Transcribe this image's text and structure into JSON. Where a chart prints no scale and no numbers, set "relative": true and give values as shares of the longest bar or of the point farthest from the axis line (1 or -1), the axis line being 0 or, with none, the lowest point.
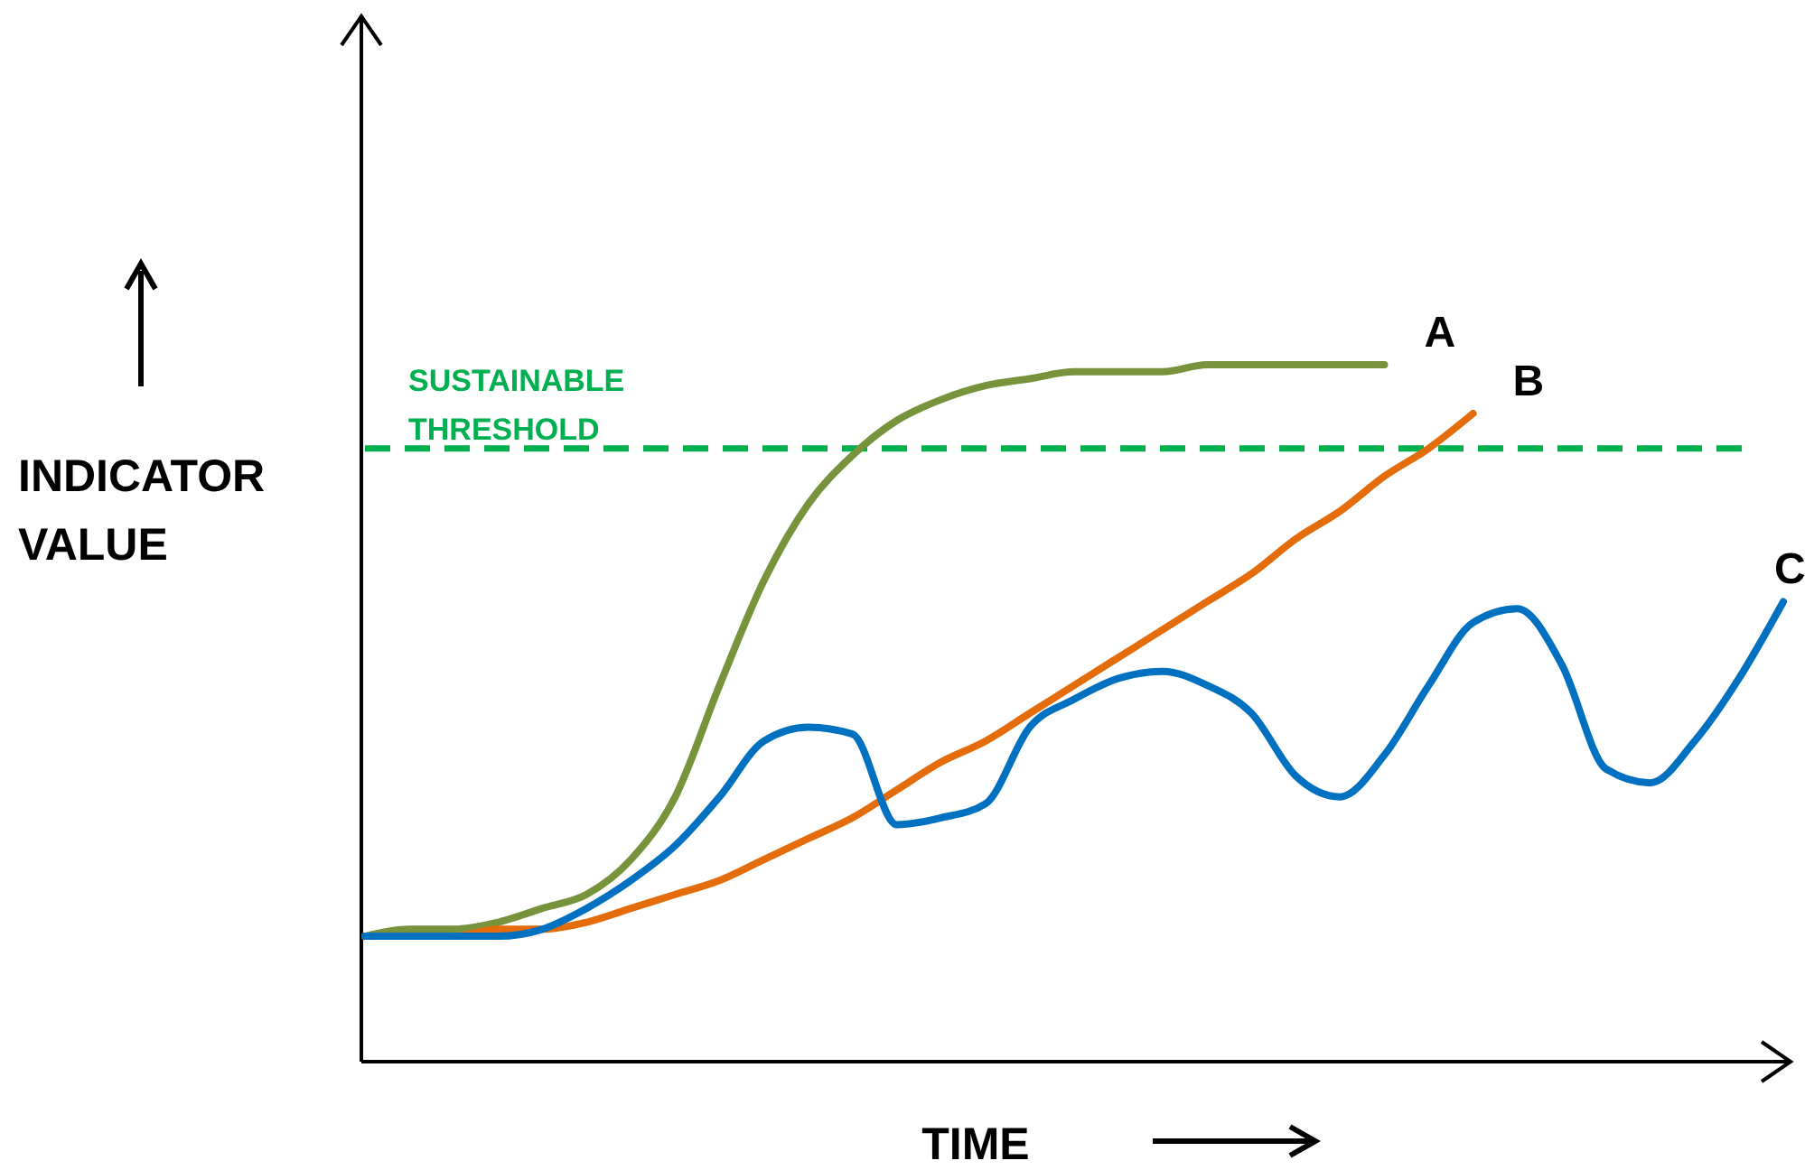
{
  "chart_data": {
    "type": "line",
    "relative": true,
    "xlabel": "TIME",
    "ylabel": "INDICATOR VALUE",
    "categories": [
      null,
      null,
      null,
      null,
      null,
      null,
      null,
      null,
      null,
      null,
      null,
      null,
      null,
      null,
      null,
      null,
      null,
      null,
      null,
      null,
      null,
      null,
      null,
      null,
      null,
      null,
      null,
      null,
      null,
      null,
      null,
      null,
      null
    ],
    "series": [
      {
        "name": "A",
        "color": "#77933c",
        "values": [
          0.18,
          0.19,
          0.19,
          0.2,
          0.22,
          0.24,
          0.29,
          0.38,
          0.54,
          0.69,
          0.8,
          0.87,
          0.92,
          0.95,
          0.97,
          0.98,
          0.99,
          0.99,
          0.99,
          1,
          1,
          1,
          1,
          1,
          null,
          null,
          null,
          null,
          null,
          null,
          null,
          null,
          null
        ]
      },
      {
        "name": "B",
        "color": "#e46c0a",
        "values": [
          0.18,
          0.18,
          0.18,
          0.19,
          0.19,
          0.2,
          0.22,
          0.24,
          0.26,
          0.29,
          0.32,
          0.35,
          0.39,
          0.43,
          0.46,
          0.5,
          0.54,
          0.58,
          0.62,
          0.66,
          0.7,
          0.75,
          0.79,
          0.84,
          0.88,
          0.93,
          null,
          null,
          null,
          null,
          null,
          null,
          null
        ]
      },
      {
        "name": "C",
        "color": "#0070c0",
        "values": [
          0.18,
          0.18,
          0.18,
          0.18,
          0.19,
          0.22,
          0.26,
          0.31,
          0.38,
          0.46,
          0.48,
          0.47,
          0.34,
          0.35,
          0.37,
          0.48,
          0.52,
          0.55,
          0.56,
          0.54,
          0.5,
          0.41,
          0.38,
          0.44,
          0.54,
          0.63,
          0.65,
          0.57,
          0.42,
          0.4,
          0.46,
          0.55,
          0.66
        ]
      }
    ],
    "ref_lines": [
      {
        "axis": "y",
        "value": 0.88,
        "label": "SUSTAINABLE THRESHOLD",
        "color": "#00b050",
        "line_style": "dashed"
      }
    ],
    "legend": false,
    "grid": false,
    "marker": "none",
    "line_style": "solid",
    "tick_labels": false
  }
}
